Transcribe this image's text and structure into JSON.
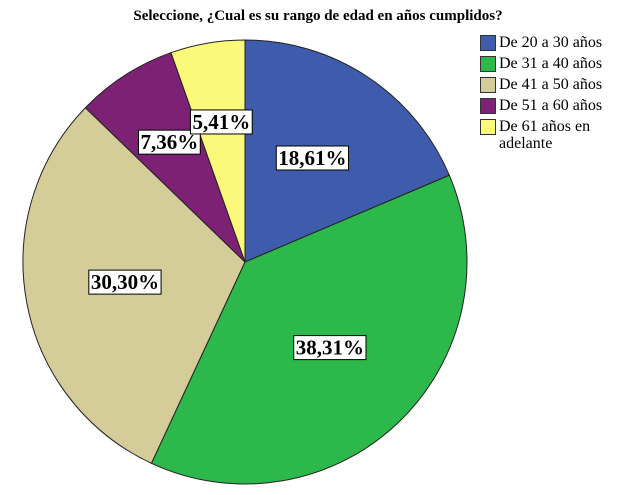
{
  "chart_data": {
    "type": "pie",
    "title": "Seleccione, ¿Cual es su rango de edad en años cumplidos?",
    "categories": [
      "De 20 a 30 años",
      "De 31 a 40 años",
      "De 41 a 50 años",
      "De 51 a 60 años",
      "De 61 años en adelante"
    ],
    "values": [
      18.61,
      38.31,
      30.3,
      7.36,
      5.41
    ],
    "value_labels": [
      "18,61%",
      "38,31%",
      "30,30%",
      "7,36%",
      "5,41%"
    ],
    "colors": [
      "#3f5bab",
      "#2db84c",
      "#d4cc99",
      "#7d2175",
      "#fbf97a"
    ]
  }
}
